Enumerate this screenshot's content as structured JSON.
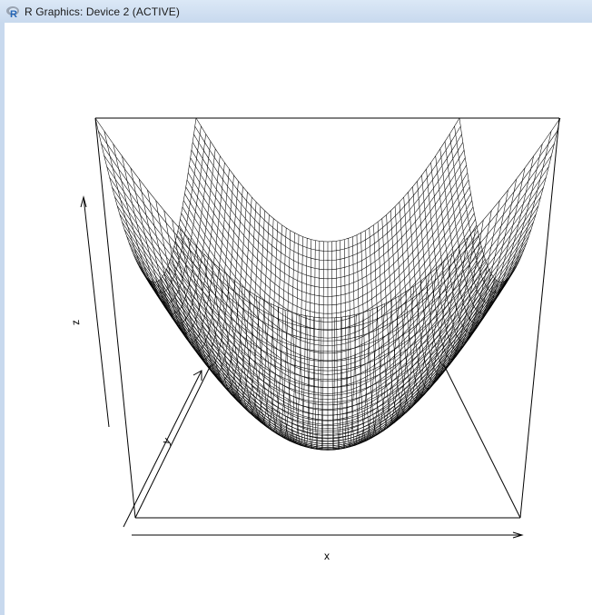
{
  "window": {
    "title": "R Graphics: Device 2 (ACTIVE)",
    "icon": "r-logo-icon"
  },
  "chart_data": {
    "type": "surface",
    "function": "z = x^2 + y^2 (paraboloid wireframe mesh)",
    "xlabel": "x",
    "ylabel": "y",
    "zlabel": "z",
    "box": true,
    "axes": "arrows",
    "colors": {
      "mesh": "#000000",
      "background": "#ffffff"
    }
  }
}
